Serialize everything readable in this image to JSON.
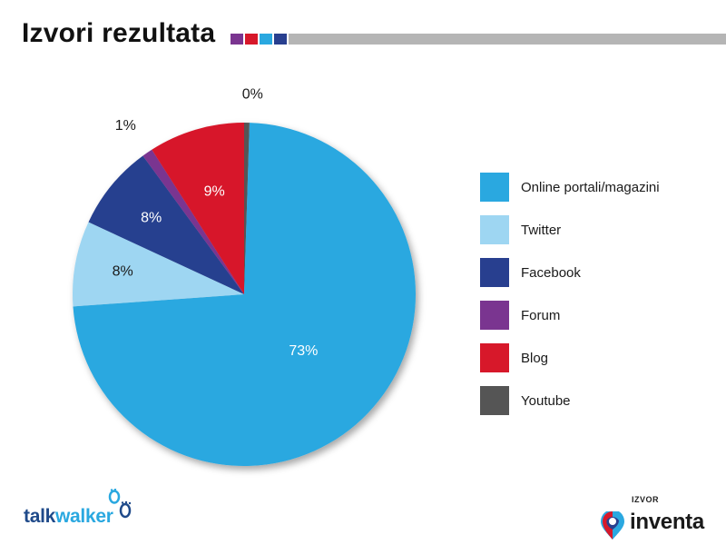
{
  "header": {
    "title": "Izvori rezultata",
    "accent_squares": [
      "#7a3590",
      "#d7182a",
      "#2aa8e0",
      "#283f8f"
    ],
    "bar_color": "#b5b5b5"
  },
  "chart_data": {
    "type": "pie",
    "title": "Izvori rezultata",
    "legend_position": "right",
    "slices": [
      {
        "label": "Online portali/magazini",
        "value": 73,
        "display": "73%",
        "color": "#2aa8e0",
        "label_color": "#ffffff"
      },
      {
        "label": "Twitter",
        "value": 8,
        "display": "8%",
        "color": "#9ed6f2",
        "label_color": "#1a1a1a"
      },
      {
        "label": "Facebook",
        "value": 8,
        "display": "8%",
        "color": "#283f8f",
        "label_color": "#ffffff"
      },
      {
        "label": "Forum",
        "value": 1,
        "display": "1%",
        "color": "#7a3590",
        "label_color": "#1a1a1a"
      },
      {
        "label": "Blog",
        "value": 9,
        "display": "9%",
        "color": "#d7182a",
        "label_color": "#ffffff"
      },
      {
        "label": "Youtube",
        "value": 0.5,
        "display": "0%",
        "color": "#555555",
        "label_color": "#1a1a1a"
      }
    ]
  },
  "footer": {
    "left_logo_prefix": "talk",
    "left_logo_suffix": "walker",
    "right_label": "IZVOR",
    "right_logo_text": "inventa"
  }
}
